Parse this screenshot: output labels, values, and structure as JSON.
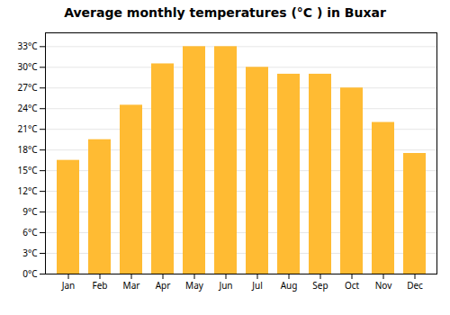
{
  "chart_data": {
    "type": "bar",
    "title": "Average monthly temperatures (°C ) in Buxar",
    "categories": [
      "Jan",
      "Feb",
      "Mar",
      "Apr",
      "May",
      "Jun",
      "Jul",
      "Aug",
      "Sep",
      "Oct",
      "Nov",
      "Dec"
    ],
    "values": [
      16.5,
      19.5,
      24.5,
      30.5,
      33.0,
      33.0,
      30.0,
      29.0,
      29.0,
      27.0,
      22.0,
      17.5
    ],
    "color": "#FFBB33",
    "ylim": [
      0,
      35
    ],
    "yticks": [
      {
        "value": 0,
        "label": "0°C"
      },
      {
        "value": 3,
        "label": "3°C"
      },
      {
        "value": 6,
        "label": "6°C"
      },
      {
        "value": 9,
        "label": "9°C"
      },
      {
        "value": 12,
        "label": "12°C"
      },
      {
        "value": 15,
        "label": "15°C"
      },
      {
        "value": 18,
        "label": "18°C"
      },
      {
        "value": 21,
        "label": "21°C"
      },
      {
        "value": 24,
        "label": "24°C"
      },
      {
        "value": 27,
        "label": "27°C"
      },
      {
        "value": 30,
        "label": "30°C"
      },
      {
        "value": 33,
        "label": "33°C"
      }
    ],
    "grid": true
  }
}
